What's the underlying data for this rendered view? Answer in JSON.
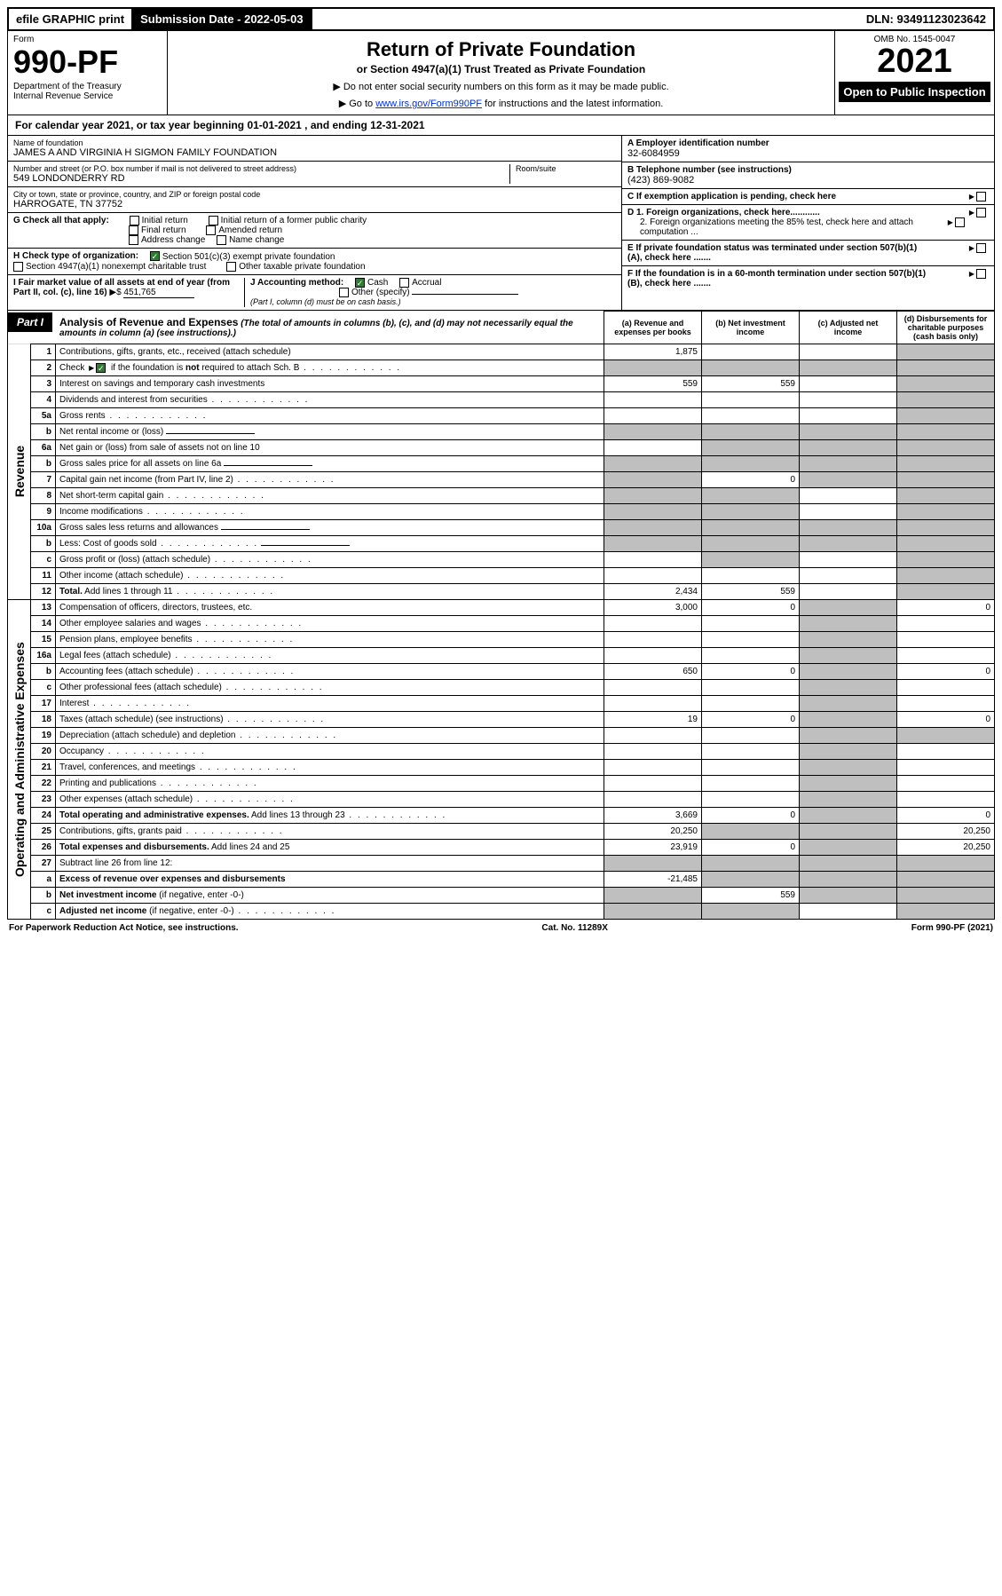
{
  "topbar": {
    "efile": "efile GRAPHIC print",
    "subdate_label": "Submission Date - 2022-05-03",
    "dln": "DLN: 93491123023642"
  },
  "header": {
    "form_word": "Form",
    "form_no": "990-PF",
    "dept": "Department of the Treasury",
    "irs": "Internal Revenue Service",
    "title": "Return of Private Foundation",
    "subtitle": "or Section 4947(a)(1) Trust Treated as Private Foundation",
    "instr1": "▶ Do not enter social security numbers on this form as it may be made public.",
    "instr2_pre": "▶ Go to ",
    "instr2_link": "www.irs.gov/Form990PF",
    "instr2_post": " for instructions and the latest information.",
    "omb": "OMB No. 1545-0047",
    "year": "2021",
    "open_pub": "Open to Public Inspection"
  },
  "cal_year": "For calendar year 2021, or tax year beginning 01-01-2021              , and ending 12-31-2021",
  "info": {
    "name_lbl": "Name of foundation",
    "name": "JAMES A AND VIRGINIA H SIGMON FAMILY FOUNDATION",
    "addr_lbl": "Number and street (or P.O. box number if mail is not delivered to street address)",
    "addr": "549 LONDONDERRY RD",
    "room_lbl": "Room/suite",
    "city_lbl": "City or town, state or province, country, and ZIP or foreign postal code",
    "city": "HARROGATE, TN  37752",
    "g_lbl": "G Check all that apply:",
    "g_opts": [
      "Initial return",
      "Initial return of a former public charity",
      "Final return",
      "Amended return",
      "Address change",
      "Name change"
    ],
    "h_lbl": "H Check type of organization:",
    "h_opts": [
      "Section 501(c)(3) exempt private foundation",
      "Section 4947(a)(1) nonexempt charitable trust",
      "Other taxable private foundation"
    ],
    "i_lbl": "I Fair market value of all assets at end of year (from Part II, col. (c), line 16)",
    "i_val": "451,765",
    "j_lbl": "J Accounting method:",
    "j_opts": [
      "Cash",
      "Accrual",
      "Other (specify)"
    ],
    "j_note": "(Part I, column (d) must be on cash basis.)",
    "a_lbl": "A Employer identification number",
    "a_val": "32-6084959",
    "b_lbl": "B Telephone number (see instructions)",
    "b_val": "(423) 869-9082",
    "c_lbl": "C If exemption application is pending, check here",
    "d1_lbl": "D 1. Foreign organizations, check here............",
    "d2_lbl": "2. Foreign organizations meeting the 85% test, check here and attach computation ...",
    "e_lbl": "E  If private foundation status was terminated under section 507(b)(1)(A), check here .......",
    "f_lbl": "F  If the foundation is in a 60-month termination under section 507(b)(1)(B), check here .......",
    "i_prefix": "▶$ "
  },
  "part1": {
    "label": "Part I",
    "title": "Analysis of Revenue and Expenses",
    "note": " (The total of amounts in columns (b), (c), and (d) may not necessarily equal the amounts in column (a) (see instructions).)",
    "cols": {
      "a": "(a)   Revenue and expenses per books",
      "b": "(b)   Net investment income",
      "c": "(c)   Adjusted net income",
      "d": "(d)   Disbursements for charitable purposes (cash basis only)"
    }
  },
  "sections": {
    "revenue": "Revenue",
    "opex": "Operating and Administrative Expenses"
  },
  "rows": [
    {
      "n": "1",
      "lbl": "Contributions, gifts, grants, etc., received (attach schedule)",
      "a": "1,875",
      "d_shade": true
    },
    {
      "n": "2",
      "lbl_html": "Check <span class='tri'></span><span class='chk checked'></span> if the foundation is <b>not</b> required to attach Sch. B",
      "dots": true,
      "a_shade": true,
      "b_shade": true,
      "c_shade": true,
      "d_shade": true
    },
    {
      "n": "3",
      "lbl": "Interest on savings and temporary cash investments",
      "a": "559",
      "b": "559",
      "d_shade": true
    },
    {
      "n": "4",
      "lbl": "Dividends and interest from securities",
      "dots": true,
      "d_shade": true
    },
    {
      "n": "5a",
      "lbl": "Gross rents",
      "dots": true,
      "d_shade": true
    },
    {
      "n": "b",
      "lbl": "Net rental income or (loss)",
      "underline": true,
      "a_shade": true,
      "b_shade": true,
      "c_shade": true,
      "d_shade": true
    },
    {
      "n": "6a",
      "lbl": "Net gain or (loss) from sale of assets not on line 10",
      "b_shade": true,
      "c_shade": true,
      "d_shade": true
    },
    {
      "n": "b",
      "lbl": "Gross sales price for all assets on line 6a",
      "underline": true,
      "a_shade": true,
      "b_shade": true,
      "c_shade": true,
      "d_shade": true
    },
    {
      "n": "7",
      "lbl": "Capital gain net income (from Part IV, line 2)",
      "dots": true,
      "a_shade": true,
      "b": "0",
      "c_shade": true,
      "d_shade": true
    },
    {
      "n": "8",
      "lbl": "Net short-term capital gain",
      "dots": true,
      "a_shade": true,
      "b_shade": true,
      "d_shade": true
    },
    {
      "n": "9",
      "lbl": "Income modifications",
      "dots": true,
      "a_shade": true,
      "b_shade": true,
      "d_shade": true
    },
    {
      "n": "10a",
      "lbl": "Gross sales less returns and allowances",
      "underline": true,
      "a_shade": true,
      "b_shade": true,
      "c_shade": true,
      "d_shade": true
    },
    {
      "n": "b",
      "lbl": "Less: Cost of goods sold",
      "dots": true,
      "underline": true,
      "a_shade": true,
      "b_shade": true,
      "c_shade": true,
      "d_shade": true
    },
    {
      "n": "c",
      "lbl": "Gross profit or (loss) (attach schedule)",
      "dots": true,
      "b_shade": true,
      "d_shade": true
    },
    {
      "n": "11",
      "lbl": "Other income (attach schedule)",
      "dots": true,
      "d_shade": true
    },
    {
      "n": "12",
      "lbl": "<b>Total.</b> Add lines 1 through 11",
      "dots": true,
      "a": "2,434",
      "b": "559",
      "d_shade": true
    }
  ],
  "rows_opex": [
    {
      "n": "13",
      "lbl": "Compensation of officers, directors, trustees, etc.",
      "a": "3,000",
      "b": "0",
      "c_shade": true,
      "d": "0"
    },
    {
      "n": "14",
      "lbl": "Other employee salaries and wages",
      "dots": true,
      "c_shade": true
    },
    {
      "n": "15",
      "lbl": "Pension plans, employee benefits",
      "dots": true,
      "c_shade": true
    },
    {
      "n": "16a",
      "lbl": "Legal fees (attach schedule)",
      "dots": true,
      "c_shade": true
    },
    {
      "n": "b",
      "lbl": "Accounting fees (attach schedule)",
      "dots": true,
      "a": "650",
      "b": "0",
      "c_shade": true,
      "d": "0"
    },
    {
      "n": "c",
      "lbl": "Other professional fees (attach schedule)",
      "dots": true,
      "c_shade": true
    },
    {
      "n": "17",
      "lbl": "Interest",
      "dots": true,
      "c_shade": true
    },
    {
      "n": "18",
      "lbl": "Taxes (attach schedule) (see instructions)",
      "dots": true,
      "a": "19",
      "b": "0",
      "c_shade": true,
      "d": "0"
    },
    {
      "n": "19",
      "lbl": "Depreciation (attach schedule) and depletion",
      "dots": true,
      "c_shade": true,
      "d_shade": true
    },
    {
      "n": "20",
      "lbl": "Occupancy",
      "dots": true,
      "c_shade": true
    },
    {
      "n": "21",
      "lbl": "Travel, conferences, and meetings",
      "dots": true,
      "c_shade": true
    },
    {
      "n": "22",
      "lbl": "Printing and publications",
      "dots": true,
      "c_shade": true
    },
    {
      "n": "23",
      "lbl": "Other expenses (attach schedule)",
      "dots": true,
      "c_shade": true
    },
    {
      "n": "24",
      "lbl": "<b>Total operating and administrative expenses.</b> Add lines 13 through 23",
      "dots": true,
      "a": "3,669",
      "b": "0",
      "c_shade": true,
      "d": "0"
    },
    {
      "n": "25",
      "lbl": "Contributions, gifts, grants paid",
      "dots": true,
      "a": "20,250",
      "b_shade": true,
      "c_shade": true,
      "d": "20,250"
    },
    {
      "n": "26",
      "lbl": "<b>Total expenses and disbursements.</b> Add lines 24 and 25",
      "a": "23,919",
      "b": "0",
      "c_shade": true,
      "d": "20,250"
    },
    {
      "n": "27",
      "lbl": "Subtract line 26 from line 12:",
      "a_shade": true,
      "b_shade": true,
      "c_shade": true,
      "d_shade": true
    },
    {
      "n": "a",
      "lbl": "<b>Excess of revenue over expenses and disbursements</b>",
      "a": "-21,485",
      "b_shade": true,
      "c_shade": true,
      "d_shade": true
    },
    {
      "n": "b",
      "lbl": "<b>Net investment income</b> (if negative, enter -0-)",
      "a_shade": true,
      "b": "559",
      "c_shade": true,
      "d_shade": true
    },
    {
      "n": "c",
      "lbl": "<b>Adjusted net income</b> (if negative, enter -0-)",
      "dots": true,
      "a_shade": true,
      "b_shade": true,
      "d_shade": true
    }
  ],
  "footer": {
    "left": "For Paperwork Reduction Act Notice, see instructions.",
    "mid": "Cat. No. 11289X",
    "right": "Form 990-PF (2021)"
  }
}
